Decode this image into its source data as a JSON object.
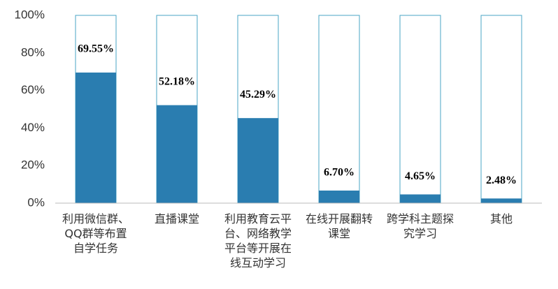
{
  "chart_data": {
    "type": "bar",
    "categories": [
      "利用微信群、QQ群等布置自学任务",
      "直播课堂",
      "利用教育云平台、网络教学平台等开展在线互动学习",
      "在线开展翻转课堂",
      "跨学科主题探究学习",
      "其他"
    ],
    "values": [
      69.55,
      52.18,
      45.29,
      6.7,
      4.65,
      2.48
    ],
    "value_labels": [
      "69.55%",
      "52.18%",
      "45.29%",
      "6.70%",
      "4.65%",
      "2.48%"
    ],
    "color": "#2a7db0",
    "ylim": [
      0,
      100
    ],
    "yticks": [
      {
        "value": 0,
        "label": "0%"
      },
      {
        "value": 20,
        "label": "20%"
      },
      {
        "value": 40,
        "label": "40%"
      },
      {
        "value": 60,
        "label": "60%"
      },
      {
        "value": 80,
        "label": "80%"
      },
      {
        "value": 100,
        "label": "100%"
      }
    ]
  }
}
